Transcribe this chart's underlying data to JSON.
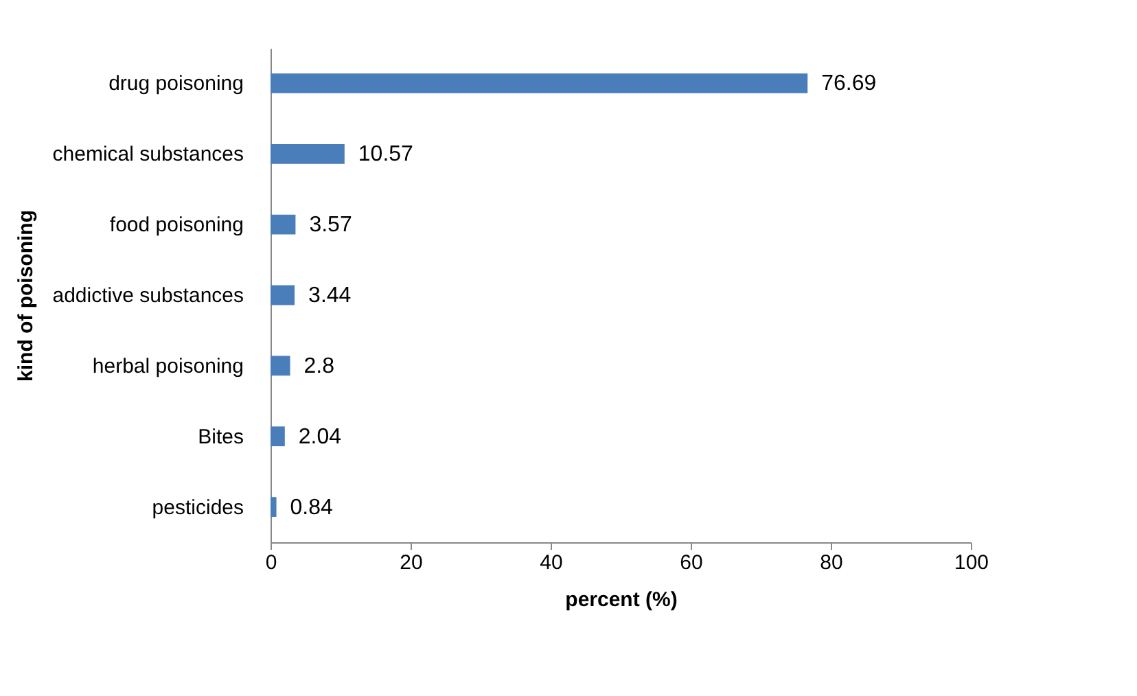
{
  "chart_data": {
    "type": "bar",
    "orientation": "horizontal",
    "xlabel": "percent (%)",
    "ylabel": "kind of poisoning",
    "categories": [
      "drug poisoning",
      "chemical substances",
      "food poisoning",
      "addictive substances",
      "herbal poisoning",
      "Bites",
      "pesticides"
    ],
    "values": [
      76.69,
      10.57,
      3.57,
      3.44,
      2.8,
      2.04,
      0.84
    ],
    "color": "#4a7ebb",
    "xlim": [
      0,
      100
    ],
    "xticks": [
      0,
      20,
      40,
      60,
      80,
      100
    ],
    "grid": false,
    "data_labels": true
  }
}
